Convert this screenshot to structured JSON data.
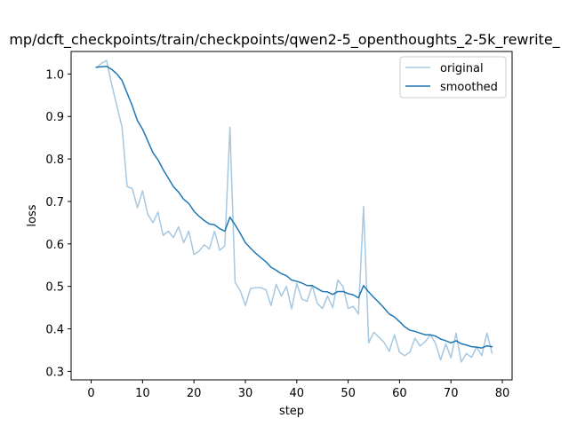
{
  "chart_data": {
    "type": "line",
    "title": "mp/dcft_checkpoints/train/checkpoints/qwen2-5_openthoughts_2-5k_rewrite_",
    "xlabel": "step",
    "ylabel": "loss",
    "xlim": [
      -3.9,
      81.9
    ],
    "ylim": [
      0.28,
      1.053
    ],
    "xticks": [
      0,
      10,
      20,
      30,
      40,
      50,
      60,
      70,
      80
    ],
    "yticks": [
      0.3,
      0.4,
      0.5,
      0.6,
      0.7,
      0.8,
      0.9,
      1.0
    ],
    "xtick_labels": [
      "0",
      "10",
      "20",
      "30",
      "40",
      "50",
      "60",
      "70",
      "80"
    ],
    "ytick_labels": [
      "0.3",
      "0.4",
      "0.5",
      "0.6",
      "0.7",
      "0.8",
      "0.9",
      "1.0"
    ],
    "legend_position": "top-right",
    "grid": false,
    "x": [
      1,
      2,
      3,
      4,
      5,
      6,
      7,
      8,
      9,
      10,
      11,
      12,
      13,
      14,
      15,
      16,
      17,
      18,
      19,
      20,
      21,
      22,
      23,
      24,
      25,
      26,
      27,
      28,
      29,
      30,
      31,
      32,
      33,
      34,
      35,
      36,
      37,
      38,
      39,
      40,
      41,
      42,
      43,
      44,
      45,
      46,
      47,
      48,
      49,
      50,
      51,
      52,
      53,
      54,
      55,
      56,
      57,
      58,
      59,
      60,
      61,
      62,
      63,
      64,
      65,
      66,
      67,
      68,
      69,
      70,
      71,
      72,
      73,
      74,
      75,
      76,
      77,
      78
    ],
    "series": [
      {
        "name": "original",
        "color": "#a6c8e0",
        "values": [
          1.015,
          1.025,
          1.032,
          0.975,
          0.925,
          0.875,
          0.735,
          0.73,
          0.685,
          0.725,
          0.67,
          0.65,
          0.675,
          0.62,
          0.63,
          0.615,
          0.64,
          0.603,
          0.63,
          0.575,
          0.583,
          0.598,
          0.588,
          0.63,
          0.585,
          0.595,
          0.875,
          0.51,
          0.49,
          0.455,
          0.495,
          0.497,
          0.497,
          0.492,
          0.455,
          0.505,
          0.477,
          0.5,
          0.447,
          0.507,
          0.47,
          0.465,
          0.502,
          0.46,
          0.448,
          0.477,
          0.45,
          0.515,
          0.5,
          0.448,
          0.453,
          0.435,
          0.688,
          0.367,
          0.392,
          0.38,
          0.368,
          0.347,
          0.386,
          0.345,
          0.337,
          0.345,
          0.378,
          0.36,
          0.37,
          0.386,
          0.366,
          0.327,
          0.365,
          0.332,
          0.39,
          0.322,
          0.342,
          0.333,
          0.357,
          0.337,
          0.39,
          0.343
        ]
      },
      {
        "name": "smoothed",
        "color": "#1f77b4",
        "values": [
          1.016,
          1.017,
          1.018,
          1.011,
          1.0,
          0.985,
          0.955,
          0.925,
          0.89,
          0.87,
          0.843,
          0.815,
          0.798,
          0.775,
          0.755,
          0.735,
          0.722,
          0.705,
          0.695,
          0.677,
          0.665,
          0.655,
          0.647,
          0.645,
          0.636,
          0.63,
          0.663,
          0.645,
          0.625,
          0.603,
          0.59,
          0.578,
          0.568,
          0.558,
          0.545,
          0.538,
          0.53,
          0.525,
          0.515,
          0.512,
          0.508,
          0.502,
          0.502,
          0.495,
          0.488,
          0.487,
          0.481,
          0.488,
          0.488,
          0.483,
          0.48,
          0.473,
          0.502,
          0.487,
          0.474,
          0.462,
          0.449,
          0.435,
          0.428,
          0.417,
          0.405,
          0.397,
          0.394,
          0.39,
          0.386,
          0.386,
          0.383,
          0.376,
          0.372,
          0.367,
          0.372,
          0.365,
          0.362,
          0.358,
          0.357,
          0.355,
          0.36,
          0.358
        ]
      }
    ]
  }
}
